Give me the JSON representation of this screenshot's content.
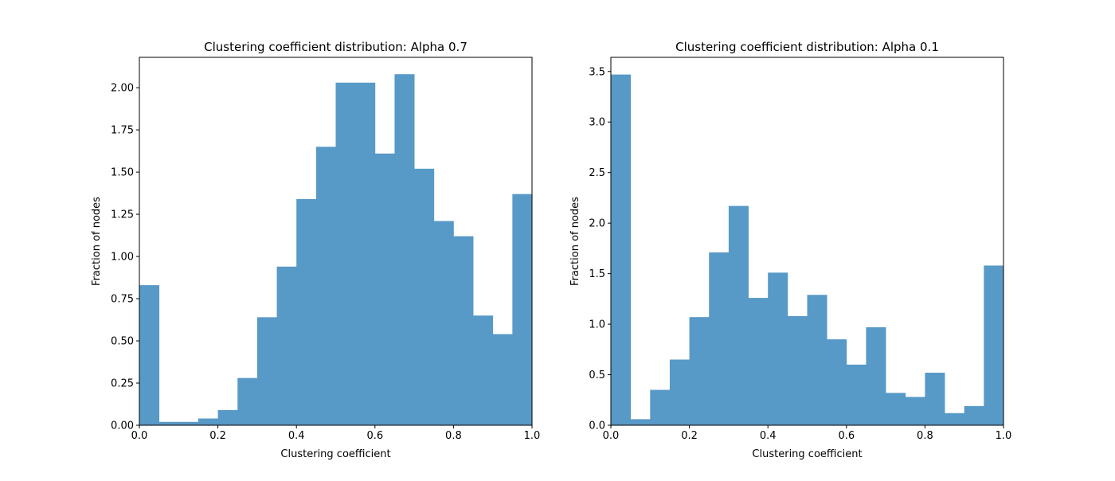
{
  "bar_color": "#5799c7",
  "chart_data": [
    {
      "type": "bar",
      "title": "Clustering coefficient distribution: Alpha 0.7",
      "xlabel": "Clustering coefficient",
      "ylabel": "Fraction of nodes",
      "xlim": [
        0,
        1
      ],
      "ylim": [
        0,
        2.18
      ],
      "bin_width": 0.05,
      "bin_starts": [
        0.0,
        0.05,
        0.1,
        0.15,
        0.2,
        0.25,
        0.3,
        0.35,
        0.4,
        0.45,
        0.5,
        0.55,
        0.6,
        0.65,
        0.7,
        0.75,
        0.8,
        0.85,
        0.9,
        0.95
      ],
      "values": [
        0.83,
        0.02,
        0.02,
        0.04,
        0.09,
        0.28,
        0.64,
        0.94,
        1.34,
        1.65,
        2.03,
        2.03,
        1.61,
        2.08,
        1.52,
        1.21,
        1.12,
        0.65,
        0.54,
        1.37
      ],
      "xticks": [
        0.0,
        0.2,
        0.4,
        0.6,
        0.8,
        1.0
      ],
      "xtick_labels": [
        "0.0",
        "0.2",
        "0.4",
        "0.6",
        "0.8",
        "1.0"
      ],
      "yticks": [
        0.0,
        0.25,
        0.5,
        0.75,
        1.0,
        1.25,
        1.5,
        1.75,
        2.0
      ],
      "ytick_labels": [
        "0.00",
        "0.25",
        "0.50",
        "0.75",
        "1.00",
        "1.25",
        "1.50",
        "1.75",
        "2.00"
      ]
    },
    {
      "type": "bar",
      "title": "Clustering coefficient distribution: Alpha 0.1",
      "xlabel": "Clustering coefficient",
      "ylabel": "Fraction of nodes",
      "xlim": [
        0,
        1
      ],
      "ylim": [
        0,
        3.64
      ],
      "bin_width": 0.05,
      "bin_starts": [
        0.0,
        0.05,
        0.1,
        0.15,
        0.2,
        0.25,
        0.3,
        0.35,
        0.4,
        0.45,
        0.5,
        0.55,
        0.6,
        0.65,
        0.7,
        0.75,
        0.8,
        0.85,
        0.9,
        0.95
      ],
      "values": [
        3.47,
        0.06,
        0.35,
        0.65,
        1.07,
        1.71,
        2.17,
        1.26,
        1.51,
        1.08,
        1.29,
        0.85,
        0.6,
        0.97,
        0.32,
        0.28,
        0.52,
        0.12,
        0.19,
        1.58
      ],
      "xticks": [
        0.0,
        0.2,
        0.4,
        0.6,
        0.8,
        1.0
      ],
      "xtick_labels": [
        "0.0",
        "0.2",
        "0.4",
        "0.6",
        "0.8",
        "1.0"
      ],
      "yticks": [
        0.0,
        0.5,
        1.0,
        1.5,
        2.0,
        2.5,
        3.0,
        3.5
      ],
      "ytick_labels": [
        "0.0",
        "0.5",
        "1.0",
        "1.5",
        "2.0",
        "2.5",
        "3.0",
        "3.5"
      ]
    }
  ]
}
